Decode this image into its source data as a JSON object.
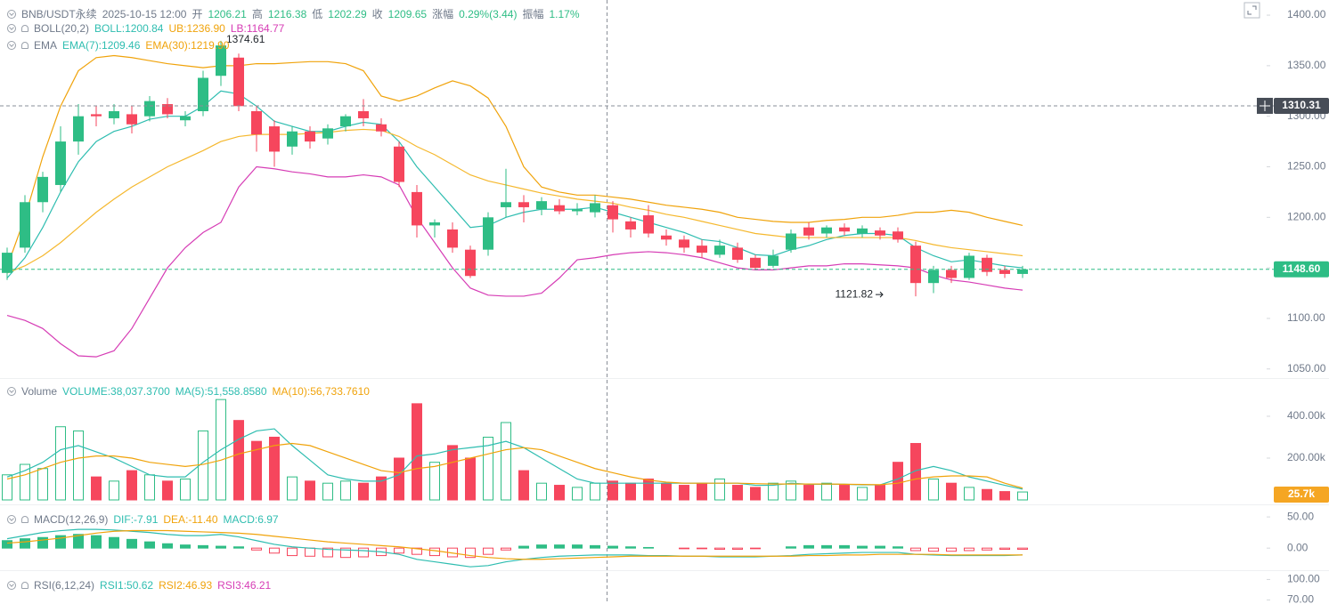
{
  "chart_data": [
    {
      "type": "candlestick",
      "title": "BNB/USDT永续",
      "time": "2025-10-15 12:00",
      "quote": [
        {
          "label": "开",
          "value": 1206.21
        },
        {
          "label": "高",
          "value": 1216.38
        },
        {
          "label": "低",
          "value": 1202.29
        },
        {
          "label": "收",
          "value": 1209.65
        },
        {
          "label": "涨幅",
          "value": "0.29%(3.44)"
        },
        {
          "label": "振幅",
          "value": "1.17%"
        }
      ],
      "indicators": [
        {
          "name": "BOLL(20,2)",
          "items": [
            {
              "text": "BOLL:1200.84",
              "color": "#2ebdb0"
            },
            {
              "text": "UB:1236.90",
              "color": "#f0a30b"
            },
            {
              "text": "LB:1164.77",
              "color": "#d63cb5"
            }
          ]
        },
        {
          "name": "EMA",
          "items": [
            {
              "text": "EMA(7):1209.46",
              "color": "#2ebdb0"
            },
            {
              "text": "EMA(30):1219.90",
              "color": "#f0a30b"
            }
          ]
        }
      ],
      "up_color": "#2ebd85",
      "down_color": "#f6465d",
      "open": [
        1145,
        1170,
        1215,
        1232,
        1275,
        1302,
        1298,
        1302,
        1300,
        1312,
        1296,
        1305,
        1340,
        1358,
        1305,
        1290,
        1270,
        1285,
        1278,
        1290,
        1305,
        1292,
        1270,
        1225,
        1192,
        1188,
        1168,
        1168,
        1210,
        1215,
        1208,
        1212,
        1206,
        1205,
        1212,
        1196,
        1202,
        1182,
        1178,
        1172,
        1163,
        1170,
        1160,
        1152,
        1168,
        1190,
        1184,
        1190,
        1184,
        1187,
        1186,
        1172,
        1135,
        1148,
        1140,
        1160,
        1148,
        1144
      ],
      "high": [
        1170,
        1222,
        1245,
        1290,
        1312,
        1310,
        1312,
        1310,
        1320,
        1318,
        1305,
        1345,
        1374.61,
        1362,
        1310,
        1296,
        1290,
        1290,
        1292,
        1302,
        1317,
        1298,
        1275,
        1232,
        1198,
        1195,
        1172,
        1205,
        1248,
        1222,
        1220,
        1218,
        1214,
        1222,
        1216,
        1200,
        1212,
        1188,
        1182,
        1178,
        1178,
        1175,
        1163,
        1168,
        1188,
        1195,
        1192,
        1194,
        1192,
        1190,
        1190,
        1176,
        1152,
        1152,
        1165,
        1163,
        1152,
        1152
      ],
      "low": [
        1138,
        1165,
        1205,
        1225,
        1262,
        1290,
        1292,
        1283,
        1295,
        1298,
        1290,
        1300,
        1330,
        1305,
        1265,
        1250,
        1262,
        1268,
        1272,
        1285,
        1290,
        1280,
        1230,
        1180,
        1180,
        1165,
        1140,
        1162,
        1200,
        1195,
        1202,
        1203,
        1202,
        1200,
        1185,
        1180,
        1180,
        1172,
        1165,
        1160,
        1160,
        1155,
        1148,
        1150,
        1165,
        1178,
        1180,
        1182,
        1180,
        1178,
        1175,
        1121.82,
        1125,
        1135,
        1138,
        1142,
        1140,
        1140
      ],
      "close": [
        1165,
        1215,
        1240,
        1275,
        1300,
        1300,
        1305,
        1292,
        1315,
        1302,
        1300,
        1338,
        1370,
        1310,
        1282,
        1265,
        1285,
        1275,
        1288,
        1300,
        1298,
        1285,
        1235,
        1192,
        1195,
        1170,
        1142,
        1200,
        1215,
        1210,
        1216,
        1206,
        1208,
        1214,
        1198,
        1188,
        1184,
        1178,
        1170,
        1165,
        1172,
        1158,
        1150,
        1162,
        1184,
        1182,
        1190,
        1186,
        1189,
        1182,
        1178,
        1135,
        1148,
        1140,
        1162,
        1146,
        1144,
        1148.6
      ],
      "lines": [
        {
          "color": "#f0a30b",
          "values": [
            1151,
            1200,
            1260,
            1310,
            1345,
            1358,
            1360,
            1358,
            1355,
            1352,
            1350,
            1348,
            1350,
            1350,
            1352,
            1352,
            1353,
            1354,
            1354,
            1352,
            1345,
            1320,
            1315,
            1320,
            1328,
            1335,
            1330,
            1318,
            1290,
            1250,
            1230,
            1225,
            1222,
            1222,
            1220,
            1218,
            1215,
            1212,
            1210,
            1208,
            1205,
            1200,
            1198,
            1196,
            1195,
            1195,
            1197,
            1198,
            1200,
            1200,
            1202,
            1205,
            1205,
            1207,
            1205,
            1200,
            1196,
            1192
          ]
        },
        {
          "color": "#d63cb5",
          "values": [
            1103,
            1098,
            1090,
            1075,
            1063,
            1062,
            1068,
            1090,
            1120,
            1150,
            1170,
            1185,
            1195,
            1230,
            1250,
            1248,
            1245,
            1243,
            1240,
            1240,
            1242,
            1240,
            1232,
            1200,
            1175,
            1150,
            1130,
            1123,
            1122,
            1122,
            1125,
            1140,
            1158,
            1160,
            1163,
            1165,
            1166,
            1165,
            1163,
            1160,
            1155,
            1150,
            1148,
            1148,
            1150,
            1152,
            1152,
            1154,
            1154,
            1153,
            1152,
            1150,
            1143,
            1138,
            1136,
            1133,
            1130,
            1128
          ]
        },
        {
          "color": "#2ebdb0",
          "values": [
            1140,
            1160,
            1190,
            1225,
            1255,
            1275,
            1285,
            1290,
            1297,
            1300,
            1300,
            1310,
            1325,
            1322,
            1310,
            1295,
            1290,
            1285,
            1285,
            1290,
            1294,
            1292,
            1275,
            1250,
            1230,
            1210,
            1190,
            1192,
            1200,
            1205,
            1208,
            1208,
            1208,
            1210,
            1205,
            1200,
            1195,
            1190,
            1185,
            1178,
            1176,
            1170,
            1163,
            1162,
            1168,
            1172,
            1178,
            1182,
            1184,
            1184,
            1182,
            1170,
            1162,
            1156,
            1158,
            1155,
            1152,
            1150
          ]
        },
        {
          "color": "#f5b82e",
          "values": [
            1145,
            1152,
            1162,
            1175,
            1190,
            1205,
            1218,
            1230,
            1240,
            1250,
            1258,
            1266,
            1275,
            1280,
            1282,
            1282,
            1282,
            1283,
            1284,
            1286,
            1287,
            1286,
            1280,
            1270,
            1262,
            1252,
            1242,
            1236,
            1232,
            1228,
            1224,
            1221,
            1218,
            1216,
            1214,
            1210,
            1207,
            1203,
            1200,
            1196,
            1192,
            1188,
            1184,
            1182,
            1180,
            1180,
            1180,
            1180,
            1180,
            1180,
            1180,
            1177,
            1173,
            1170,
            1168,
            1166,
            1164,
            1162
          ]
        }
      ],
      "high_label": 1374.61,
      "low_label": 1121.82,
      "ylim": [
        1041,
        1415
      ],
      "yticks": [
        {
          "value": 1050,
          "label": "1050.00"
        },
        {
          "value": 1100,
          "label": "1100.00"
        },
        {
          "value": 1150,
          "label": "1150.00"
        },
        {
          "value": 1200,
          "label": "1200.00"
        },
        {
          "value": 1250,
          "label": "1250.00"
        },
        {
          "value": 1300,
          "label": "1300.00"
        },
        {
          "value": 1350,
          "label": "1350.00"
        },
        {
          "value": 1400,
          "label": "1400.00"
        }
      ],
      "tags": [
        {
          "value": 1310.31,
          "label": "1310.31",
          "color": "#474d57",
          "line": "#8a8f98"
        },
        {
          "value": 1148.6,
          "label": "1148.60",
          "color": "#2ebd85",
          "line": "#2ebd85"
        }
      ]
    },
    {
      "type": "volume",
      "title": "Volume",
      "items": [
        {
          "text": "VOLUME:38,037.3700",
          "color": "#2ebdb0"
        },
        {
          "text": "MA(5):51,558.8580",
          "color": "#2ebdb0"
        },
        {
          "text": "MA(10):56,733.7610",
          "color": "#f0a30b"
        }
      ],
      "values": [
        120000,
        170000,
        150000,
        350000,
        330000,
        110000,
        90000,
        140000,
        120000,
        90000,
        100000,
        330000,
        480000,
        380000,
        280000,
        300000,
        110000,
        90000,
        80000,
        90000,
        80000,
        110000,
        200000,
        460000,
        180000,
        260000,
        200000,
        300000,
        370000,
        140000,
        80000,
        70000,
        60000,
        80000,
        90000,
        80000,
        100000,
        80000,
        70000,
        80000,
        100000,
        70000,
        60000,
        80000,
        90000,
        70000,
        80000,
        70000,
        60000,
        70000,
        180000,
        270000,
        100000,
        80000,
        60000,
        50000,
        40000,
        38037.37
      ],
      "lines": [
        {
          "color": "#2ebdb0",
          "values": [
            110000,
            140000,
            180000,
            240000,
            260000,
            230000,
            200000,
            160000,
            120000,
            110000,
            110000,
            180000,
            240000,
            290000,
            330000,
            340000,
            260000,
            190000,
            120000,
            100000,
            90000,
            90000,
            120000,
            210000,
            220000,
            240000,
            250000,
            260000,
            280000,
            250000,
            200000,
            150000,
            100000,
            80000,
            80000,
            80000,
            80000,
            80000,
            80000,
            80000,
            80000,
            80000,
            70000,
            70000,
            80000,
            75000,
            75000,
            75000,
            72000,
            72000,
            100000,
            140000,
            160000,
            140000,
            110000,
            90000,
            70000,
            51558.858
          ]
        },
        {
          "color": "#f0a30b",
          "values": [
            100000,
            120000,
            150000,
            180000,
            200000,
            210000,
            210000,
            200000,
            180000,
            170000,
            160000,
            170000,
            190000,
            220000,
            240000,
            260000,
            270000,
            260000,
            230000,
            200000,
            170000,
            140000,
            130000,
            150000,
            160000,
            180000,
            200000,
            220000,
            240000,
            250000,
            240000,
            210000,
            180000,
            150000,
            130000,
            110000,
            95000,
            85000,
            80000,
            80000,
            80000,
            80000,
            78000,
            76000,
            76000,
            76000,
            76000,
            75000,
            74000,
            73000,
            80000,
            100000,
            110000,
            115000,
            115000,
            110000,
            80000,
            56733.761
          ]
        }
      ],
      "ylim": [
        0,
        570000
      ],
      "yticks": [
        {
          "value": 200000,
          "label": "200.00k"
        },
        {
          "value": 400000,
          "label": "400.00k"
        }
      ],
      "tags": [
        {
          "value": 25700,
          "label": "25.7k",
          "color": "#f5a623"
        }
      ]
    },
    {
      "type": "macd",
      "title": "MACD(12,26,9)",
      "items": [
        {
          "text": "DIF:-7.91",
          "color": "#2ebdb0"
        },
        {
          "text": "DEA:-11.40",
          "color": "#f0a30b"
        },
        {
          "text": "MACD:6.97",
          "color": "#2ebdb0"
        }
      ],
      "values": [
        12,
        15,
        17,
        20,
        22,
        20,
        17,
        14,
        10,
        7,
        5,
        4,
        3,
        2,
        -3,
        -8,
        -12,
        -13,
        -14,
        -15,
        -14,
        -12,
        -8,
        -10,
        -12,
        -14,
        -15,
        -10,
        -3,
        3,
        5,
        5,
        5,
        4,
        3,
        2,
        1,
        0,
        -1,
        -1,
        -2,
        -2,
        -1,
        0,
        2,
        4,
        4,
        4,
        3,
        3,
        2,
        -4,
        -5,
        -5,
        -4,
        -3,
        -2,
        -2
      ],
      "lines": [
        {
          "color": "#2ebdb0",
          "values": [
            15,
            20,
            25,
            28,
            30,
            30,
            29,
            27,
            25,
            22,
            20,
            20,
            22,
            18,
            12,
            6,
            2,
            0,
            -2,
            -3,
            -4,
            -6,
            -10,
            -18,
            -22,
            -26,
            -30,
            -28,
            -22,
            -18,
            -15,
            -13,
            -12,
            -11,
            -11,
            -11,
            -12,
            -12,
            -13,
            -13,
            -14,
            -14,
            -14,
            -13,
            -12,
            -10,
            -9,
            -8,
            -7,
            -7,
            -7,
            -10,
            -11,
            -12,
            -12,
            -12,
            -12,
            -11
          ]
        },
        {
          "color": "#f0a30b",
          "values": [
            8,
            10,
            13,
            16,
            20,
            24,
            27,
            28,
            28,
            28,
            27,
            26,
            25,
            24,
            22,
            19,
            16,
            13,
            10,
            8,
            6,
            4,
            2,
            -1,
            -4,
            -8,
            -12,
            -15,
            -17,
            -18,
            -18,
            -17,
            -16,
            -15,
            -14,
            -13,
            -13,
            -13,
            -13,
            -13,
            -13,
            -13,
            -13,
            -13,
            -13,
            -12,
            -12,
            -11,
            -11,
            -10,
            -10,
            -10,
            -10,
            -11,
            -11,
            -11,
            -11,
            -11
          ]
        }
      ],
      "up_color": "#2ebd85",
      "down_color": "#f6465d",
      "ylim": [
        -34,
        63
      ],
      "yticks": [
        {
          "value": 0,
          "label": "0.00"
        },
        {
          "value": 50,
          "label": "50.00"
        }
      ]
    },
    {
      "type": "rsi",
      "title": "RSI(6,12,24)",
      "items": [
        {
          "text": "RSI1:50.62",
          "color": "#2ebdb0"
        },
        {
          "text": "RSI2:46.93",
          "color": "#f0a30b"
        },
        {
          "text": "RSI3:46.21",
          "color": "#d63cb5"
        }
      ],
      "ylim": [
        64,
        111
      ],
      "yticks": [
        {
          "value": 70,
          "label": "70.00"
        },
        {
          "value": 100,
          "label": "100.00"
        }
      ]
    }
  ]
}
